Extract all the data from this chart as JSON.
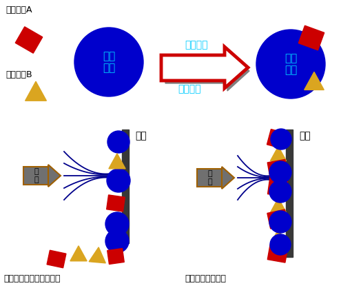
{
  "bg_color": "#ffffff",
  "blue_color": "#0000CC",
  "red_color": "#CC0000",
  "gold_color": "#DAA520",
  "shadow_color": "#808080",
  "panel_color": "#383838",
  "gun_color": "#707070",
  "gun_border": "#A06000",
  "line_color": "#00008B",
  "text_cyan": "#00CCFF",
  "text_black": "#000000",
  "label_a": "金属颜料A",
  "label_b": "金属颜料B",
  "label_fenmo": "粉末\n基料",
  "label_shebei": "邦定设备",
  "label_gongyi": "邦定工艺",
  "label_penchang": "喷\n枪",
  "label_gongjian": "工件",
  "label_bad": "没邦定或邦定不好的产品",
  "label_good": "邦定质量好的产品",
  "figsize": [
    4.95,
    4.18
  ],
  "dpi": 100
}
